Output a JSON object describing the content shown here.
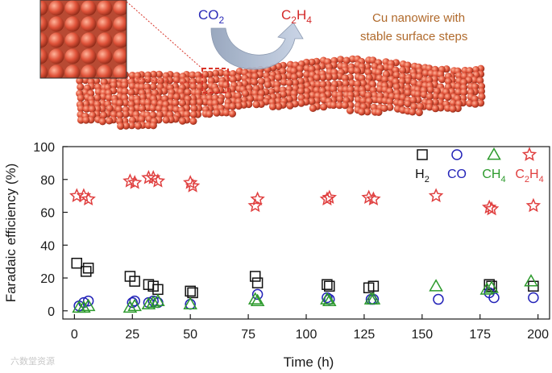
{
  "illustration": {
    "reactant": "CO",
    "reactant_sub": "2",
    "product_c": "C",
    "product_sub1": "2",
    "product_h": "H",
    "product_sub2": "4",
    "caption_line1": "Cu nanowire with",
    "caption_line2": "stable surface steps",
    "reactant_color": "#2b2bb8",
    "product_color": "#d42a2a",
    "atom_color": "#e0533a",
    "inset_color": "#d45a40"
  },
  "watermark": "六数堂资源",
  "chart_data": {
    "type": "scatter",
    "xlabel": "Time (h)",
    "ylabel": "Faradaic efficiency (%)",
    "xlim": [
      -5,
      205
    ],
    "ylim": [
      -5,
      100
    ],
    "xticks": [
      0,
      25,
      50,
      75,
      100,
      125,
      150,
      175,
      200
    ],
    "yticks": [
      0,
      20,
      40,
      60,
      80,
      100
    ],
    "series": [
      {
        "name": "H2",
        "label_main": "H",
        "label_sub": "2",
        "marker": "square",
        "color": "#111111",
        "x": [
          1,
          5,
          6,
          24,
          26,
          32,
          34,
          36,
          50,
          51,
          78,
          79,
          109,
          110,
          127,
          129,
          179,
          180,
          198
        ],
        "y": [
          29,
          24,
          26,
          21,
          18,
          16,
          15,
          13,
          12,
          11,
          21,
          17,
          16,
          15,
          14,
          15,
          16,
          15,
          15
        ]
      },
      {
        "name": "CO",
        "label_main": "CO",
        "label_sub": "",
        "marker": "circle",
        "color": "#2323b8",
        "x": [
          2,
          4,
          6,
          25,
          26,
          32,
          34,
          36,
          50,
          79,
          109,
          110,
          128,
          129,
          157,
          179,
          181,
          198
        ],
        "y": [
          3,
          5,
          6,
          5,
          6,
          5,
          6,
          5,
          4,
          10,
          8,
          7,
          7,
          7,
          7,
          11,
          8,
          8
        ]
      },
      {
        "name": "CH4",
        "label_main": "CH",
        "label_sub": "4",
        "marker": "triangle",
        "color": "#2c9a2c",
        "x": [
          2,
          4,
          6,
          24,
          26,
          32,
          34,
          36,
          50,
          78,
          79,
          109,
          110,
          128,
          129,
          156,
          178,
          180,
          197
        ],
        "y": [
          2,
          2,
          3,
          2,
          3,
          4,
          5,
          6,
          4,
          7,
          6,
          7,
          6,
          7,
          7,
          15,
          13,
          14,
          18
        ]
      },
      {
        "name": "C2H4",
        "label_main": "C",
        "label_sub": "2",
        "label_main2": "H",
        "label_sub2": "4",
        "marker": "star",
        "color": "#e04040",
        "x": [
          1,
          4,
          6,
          24,
          26,
          32,
          34,
          36,
          50,
          51,
          78,
          79,
          109,
          110,
          127,
          129,
          156,
          179,
          180,
          198
        ],
        "y": [
          70,
          70,
          68,
          79,
          78,
          81,
          81,
          79,
          78,
          76,
          64,
          68,
          68,
          69,
          69,
          68,
          70,
          63,
          62,
          64
        ]
      }
    ]
  }
}
